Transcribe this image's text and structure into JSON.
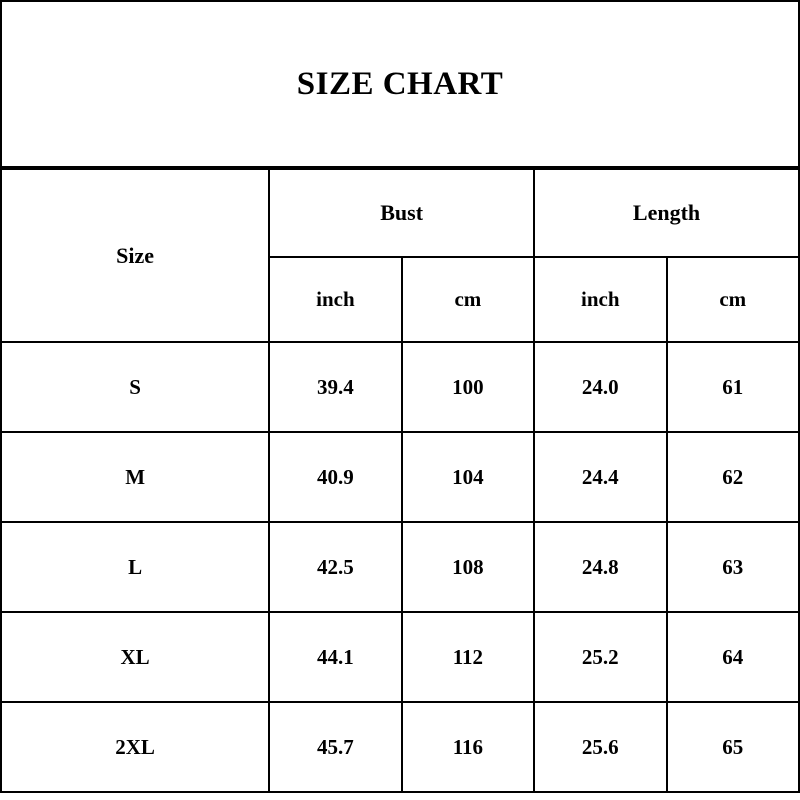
{
  "title": "SIZE CHART",
  "table": {
    "size_header": "Size",
    "groups": [
      {
        "label": "Bust",
        "units": [
          "inch",
          "cm"
        ]
      },
      {
        "label": "Length",
        "units": [
          "inch",
          "cm"
        ]
      }
    ],
    "rows": [
      {
        "size": "S",
        "values": [
          "39.4",
          "100",
          "24.0",
          "61"
        ]
      },
      {
        "size": "M",
        "values": [
          "40.9",
          "104",
          "24.4",
          "62"
        ]
      },
      {
        "size": "L",
        "values": [
          "42.5",
          "108",
          "24.8",
          "63"
        ]
      },
      {
        "size": "XL",
        "values": [
          "44.1",
          "112",
          "25.2",
          "64"
        ]
      },
      {
        "size": "2XL",
        "values": [
          "45.7",
          "116",
          "25.6",
          "65"
        ]
      }
    ]
  },
  "chart_data": {
    "type": "table",
    "title": "SIZE CHART",
    "columns": [
      "Size",
      "Bust (inch)",
      "Bust (cm)",
      "Length (inch)",
      "Length (cm)"
    ],
    "rows": [
      [
        "S",
        39.4,
        100,
        24.0,
        61
      ],
      [
        "M",
        40.9,
        104,
        24.4,
        62
      ],
      [
        "L",
        42.5,
        108,
        24.8,
        63
      ],
      [
        "XL",
        44.1,
        112,
        25.2,
        64
      ],
      [
        "2XL",
        45.7,
        116,
        25.6,
        65
      ]
    ]
  },
  "colors": {
    "background": "#ffffff",
    "border": "#000000",
    "text": "#000000"
  }
}
